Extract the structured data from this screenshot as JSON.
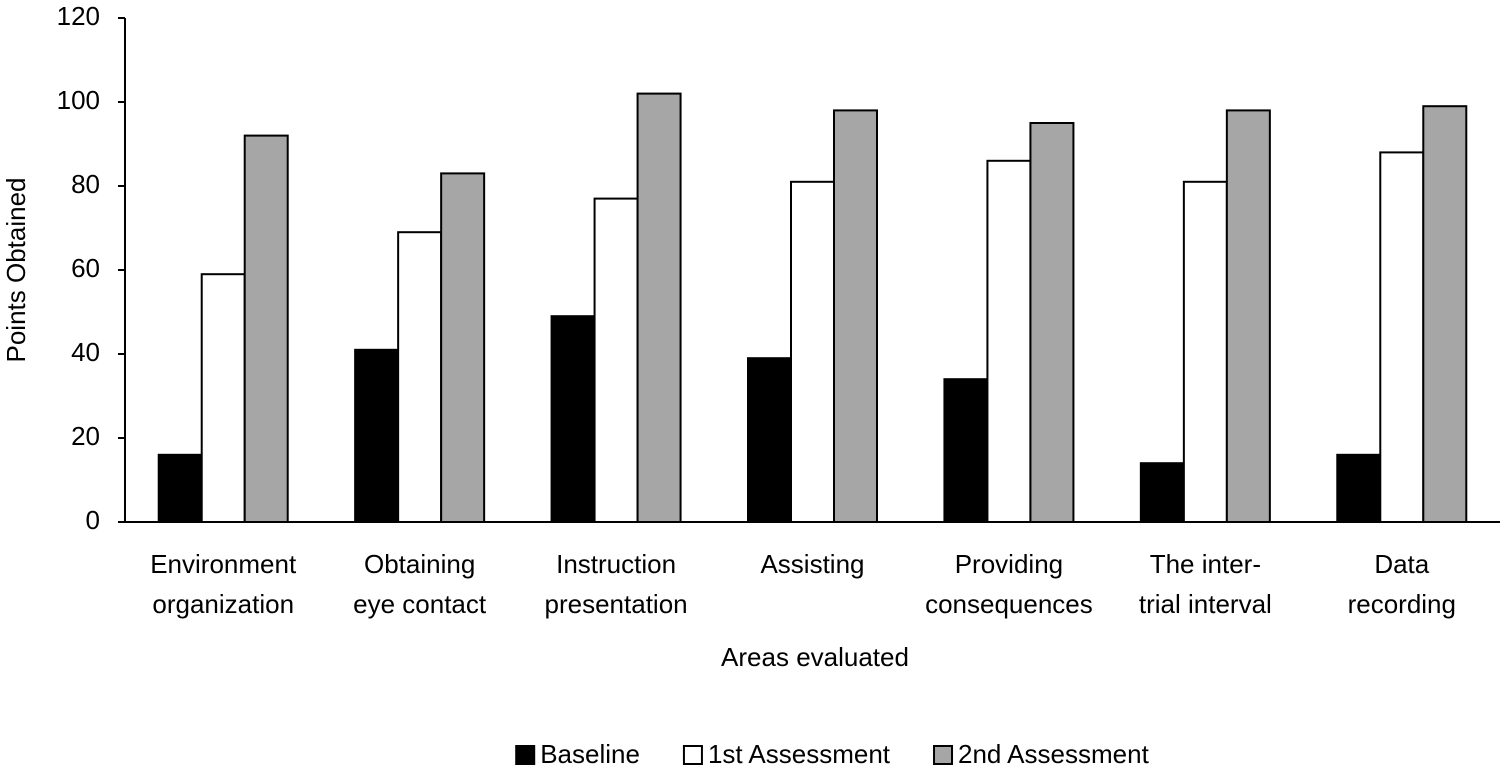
{
  "chart_data": {
    "type": "bar",
    "y_label": "Points Obtained",
    "x_label": "Areas evaluated",
    "categories": [
      [
        "Environment",
        "organization"
      ],
      [
        "Obtaining",
        "eye contact"
      ],
      [
        "Instruction",
        "presentation"
      ],
      [
        "Assisting"
      ],
      [
        "Providing",
        "consequences"
      ],
      [
        "The inter-",
        "trial interval"
      ],
      [
        "Data",
        "recording"
      ]
    ],
    "series": [
      {
        "name": "Baseline",
        "color": "#000000",
        "values": [
          16,
          41,
          49,
          39,
          34,
          14,
          16
        ]
      },
      {
        "name": "1st Assessment",
        "color": "#ffffff",
        "values": [
          59,
          69,
          77,
          81,
          86,
          81,
          88
        ]
      },
      {
        "name": "2nd Assessment",
        "color": "#a6a6a6",
        "values": [
          92,
          83,
          102,
          98,
          95,
          98,
          99
        ]
      }
    ],
    "ylim": [
      0,
      120
    ],
    "yticks": [
      0,
      20,
      40,
      60,
      80,
      100,
      120
    ],
    "grid": false,
    "legend": "bottom"
  }
}
